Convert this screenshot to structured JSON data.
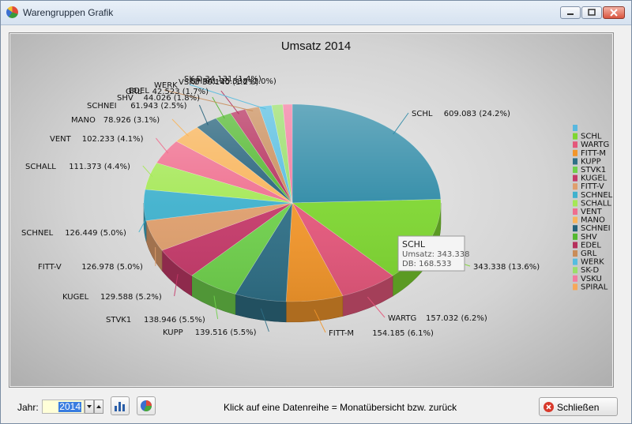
{
  "window": {
    "title": "Warengruppen Grafik"
  },
  "icons": {
    "app": "pie-chart-icon",
    "minimize": "minimize-icon",
    "maximize": "maximize-icon",
    "close": "close-icon",
    "spin_down": "caret-down-icon",
    "spin_up": "caret-up-icon",
    "bar_chart_button": "bar-chart-icon",
    "pie_chart_button": "pie-chart-icon",
    "close_button": "close-circle-icon"
  },
  "chart_data": {
    "type": "pie",
    "title": "Umsatz 2014",
    "legend_position": "right",
    "slices": [
      {
        "name": "SCHL",
        "label": "SCHL",
        "value": 609.083,
        "text": "609.083 (24.2%)",
        "color": "#2e8aa6"
      },
      {
        "name": "WARTG",
        "label": "",
        "value": 343.338,
        "text": "343.338 (13.6%)",
        "color": "#7ed631"
      },
      {
        "name": "FITT-M",
        "label": "WARTG",
        "value": 157.032,
        "text": "157.032 (6.2%)",
        "color": "#e4577b"
      },
      {
        "name": "KUPP",
        "label": "FITT-M",
        "value": 154.185,
        "text": "154.185 (6.1%)",
        "color": "#f2962b"
      },
      {
        "name": "STVK1",
        "label": "KUPP",
        "value": 139.516,
        "text": "139.516 (5.5%)",
        "color": "#2f6f86"
      },
      {
        "name": "KUGEL",
        "label": "STVK1",
        "value": 138.946,
        "text": "138.946 (5.5%)",
        "color": "#6fd04c"
      },
      {
        "name": "FITT-V",
        "label": "KUGEL",
        "value": 129.588,
        "text": "129.588 (5.2%)",
        "color": "#c53a6a"
      },
      {
        "name": "SCHNEL",
        "label": "FITT-V",
        "value": 126.978,
        "text": "126.978 (5.0%)",
        "color": "#df9f6d"
      },
      {
        "name": "SCHALL",
        "label": "SCHNEL",
        "value": 126.449,
        "text": "126.449 (5.0%)",
        "color": "#3fb1cd"
      },
      {
        "name": "VENT",
        "label": "SCHALL",
        "value": 111.373,
        "text": "111.373 (4.4%)",
        "color": "#a5e857"
      },
      {
        "name": "MANO",
        "label": "VENT",
        "value": 102.233,
        "text": "102.233 (4.1%)",
        "color": "#ef6f8f"
      },
      {
        "name": "SCHNEI",
        "label": "MANO",
        "value": 78.926,
        "text": "78.926 (3.1%)",
        "color": "#f8b45a"
      },
      {
        "name": "SHV",
        "label": "SCHNEI",
        "value": 61.943,
        "text": "61.943 (2.5%)",
        "color": "#24617a"
      },
      {
        "name": "EDEL",
        "label": "SHV",
        "value": 44.026,
        "text": "44.026 (1.8%)",
        "color": "#53b830"
      },
      {
        "name": "GRL",
        "label": "GRL",
        "value": 42.523,
        "text": "42.523 (1.7%)",
        "color": "#b52f5c"
      },
      {
        "name": "WERK",
        "label": "EDEL",
        "value": 38.2,
        "text": "",
        "color": "#c98d5a"
      },
      {
        "name": "SK-D",
        "label": "WERK",
        "value": 34.1,
        "text": "",
        "color": "#55bde0"
      },
      {
        "name": "VSKU",
        "label": "",
        "value": 30.1,
        "text": "",
        "color": "#99de6a"
      },
      {
        "name": "SPIRAL",
        "label": "",
        "value": 25.5,
        "text": "",
        "color": "#f27ba0"
      }
    ],
    "top_overlap_labels": [
      "VSKU 30.140 (1.2%)",
      "SK-D 34.131 (1.4%)",
      "SPIRAL 25.538 (1.0%)"
    ],
    "legend": [
      "",
      "SCHL",
      "WARTG",
      "FITT-M",
      "KUPP",
      "STVK1",
      "KUGEL",
      "FITT-V",
      "SCHNEL",
      "SCHALL",
      "VENT",
      "MANO",
      "SCHNEI",
      "SHV",
      "EDEL",
      "GRL",
      "WERK",
      "SK-D",
      "VSKU",
      "SPIRAL"
    ],
    "legend_colors": [
      "#59b8df",
      "#7ed631",
      "#e4577b",
      "#f2962b",
      "#2f6f86",
      "#6fd04c",
      "#c53a6a",
      "#df9f6d",
      "#3fb1cd",
      "#a5e857",
      "#ef6f8f",
      "#f8b45a",
      "#24617a",
      "#53b830",
      "#b52f5c",
      "#c98d5a",
      "#55bde0",
      "#99de6a",
      "#f27ba0",
      "#f6a85a"
    ],
    "tooltip": {
      "title": "SCHL",
      "line1": "Umsatz: 343.338",
      "line2": "DB: 168.533"
    }
  },
  "footer": {
    "year_label": "Jahr:",
    "year_value": "2014",
    "hint": "Klick auf eine Datenreihe = Monatübersicht bzw. zurück",
    "close_label": "Schließen"
  }
}
